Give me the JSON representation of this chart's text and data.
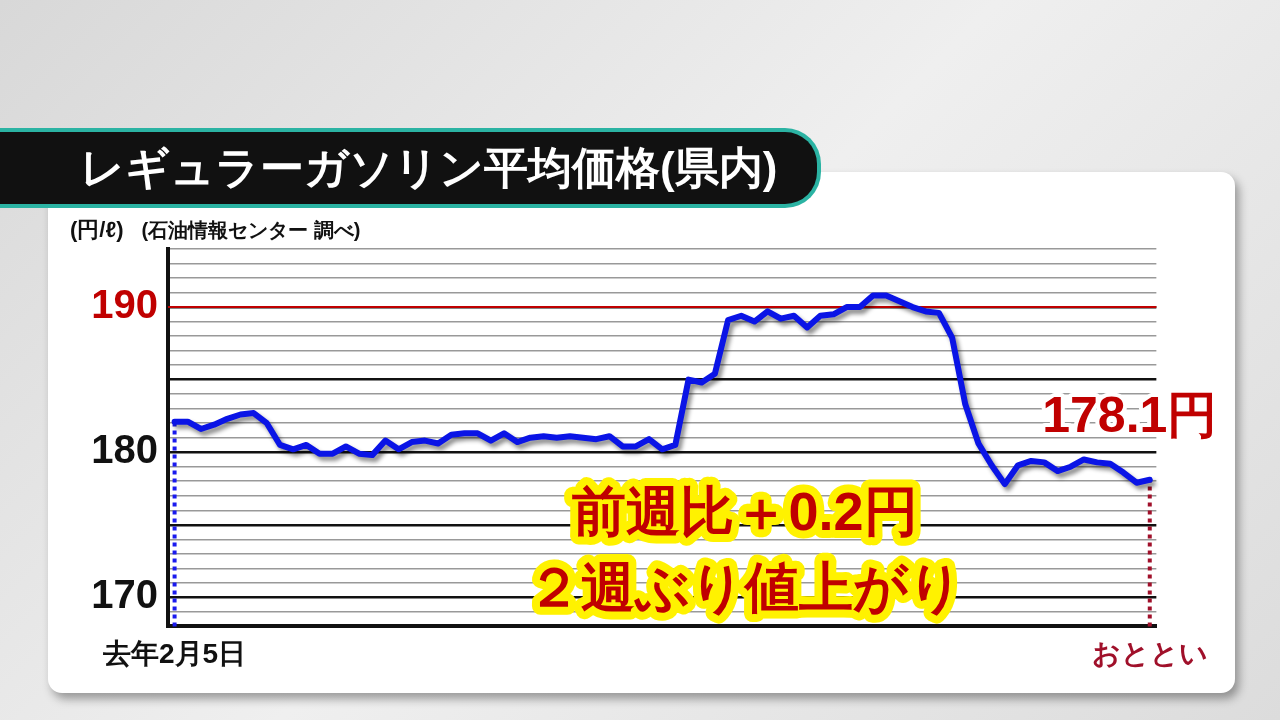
{
  "chart_data": {
    "type": "line",
    "title": "レギュラーガソリン平均価格(県内)",
    "ylabel": "(円/ℓ)",
    "annotations": [
      "(石油情報センター 調べ)",
      "前週比＋0.2円",
      "２週ぶり値上がり",
      {
        "text": "178.1円",
        "x": "おととい",
        "y": 178.1
      }
    ],
    "categories": [
      "去年2月5日",
      null,
      null,
      null,
      null,
      null,
      null,
      null,
      null,
      null,
      null,
      null,
      null,
      null,
      null,
      null,
      null,
      null,
      null,
      null,
      null,
      null,
      null,
      null,
      null,
      null,
      null,
      null,
      null,
      null,
      null,
      null,
      null,
      null,
      null,
      null,
      null,
      null,
      null,
      null,
      null,
      null,
      null,
      null,
      null,
      null,
      null,
      null,
      null,
      null,
      null,
      null,
      null,
      null,
      null,
      null,
      null,
      null,
      null,
      null,
      null,
      null,
      null,
      null,
      null,
      null,
      null,
      null,
      null,
      null,
      null,
      null,
      null,
      null,
      "おととい"
    ],
    "series": [
      {
        "color": "#0a14e6",
        "values": [
          182.1,
          182.1,
          181.6,
          181.9,
          182.3,
          182.6,
          182.7,
          182.0,
          180.5,
          180.2,
          180.5,
          179.9,
          179.9,
          180.4,
          179.9,
          179.8,
          180.8,
          180.2,
          180.7,
          180.8,
          180.6,
          181.2,
          181.3,
          181.3,
          180.8,
          181.3,
          180.7,
          181.0,
          181.1,
          181.0,
          181.1,
          181.0,
          180.9,
          181.1,
          180.4,
          180.4,
          180.9,
          180.2,
          180.5,
          185.0,
          184.8,
          185.4,
          189.1,
          189.4,
          189.0,
          189.7,
          189.2,
          189.4,
          188.6,
          189.4,
          189.5,
          190.0,
          190.0,
          190.8,
          190.8,
          190.4,
          190.0,
          189.7,
          189.6,
          187.9,
          183.3,
          180.6,
          179.1,
          177.8,
          179.1,
          179.4,
          179.3,
          178.7,
          179.0,
          179.5,
          179.3,
          179.2,
          178.6,
          177.9,
          178.1
        ]
      }
    ],
    "ylim": [
      168,
      194
    ],
    "yticks": [
      {
        "value": 168,
        "label": null
      },
      {
        "value": 169,
        "label": null
      },
      170,
      {
        "value": 171,
        "label": null
      },
      {
        "value": 172,
        "label": null
      },
      {
        "value": 173,
        "label": null
      },
      {
        "value": 174,
        "label": null
      },
      {
        "value": 175,
        "label": null
      },
      {
        "value": 176,
        "label": null
      },
      {
        "value": 177,
        "label": null
      },
      {
        "value": 178,
        "label": null
      },
      {
        "value": 179,
        "label": null
      },
      180,
      {
        "value": 181,
        "label": null
      },
      {
        "value": 182,
        "label": null
      },
      {
        "value": 183,
        "label": null
      },
      {
        "value": 184,
        "label": null
      },
      {
        "value": 185,
        "label": null
      },
      {
        "value": 186,
        "label": null
      },
      {
        "value": 187,
        "label": null
      },
      {
        "value": 188,
        "label": null
      },
      {
        "value": 189,
        "label": null
      },
      190,
      {
        "value": 191,
        "label": null
      },
      {
        "value": 192,
        "label": null
      },
      {
        "value": 193,
        "label": null
      },
      {
        "value": 194,
        "label": null
      }
    ],
    "grid": "y",
    "marker": "none",
    "line_style": "solid",
    "ref_lines": [
      {
        "axis": "y",
        "value": 190,
        "color": "#c00000",
        "line_style": "solid"
      },
      {
        "axis": "x",
        "value": "去年2月5日",
        "color": "#1a1aee",
        "line_style": "dotted"
      },
      {
        "axis": "x",
        "value": "おととい",
        "color": "#a0102a",
        "line_style": "dotted"
      }
    ]
  }
}
